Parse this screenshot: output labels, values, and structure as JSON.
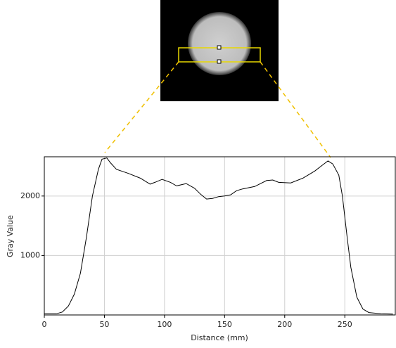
{
  "chart_data": {
    "type": "line",
    "xlabel": "Distance (mm)",
    "ylabel": "Gray Value",
    "x": [
      0,
      10,
      15,
      20,
      25,
      30,
      35,
      40,
      45,
      48,
      52,
      55,
      60,
      70,
      80,
      88,
      92,
      98,
      105,
      110,
      118,
      125,
      130,
      135,
      140,
      145,
      150,
      155,
      160,
      165,
      175,
      185,
      190,
      195,
      205,
      215,
      225,
      232,
      236,
      240,
      245,
      248,
      252,
      255,
      260,
      265,
      270,
      280,
      290
    ],
    "values": [
      20,
      20,
      50,
      150,
      350,
      700,
      1300,
      2000,
      2450,
      2620,
      2640,
      2560,
      2450,
      2380,
      2300,
      2200,
      2230,
      2280,
      2230,
      2170,
      2210,
      2130,
      2030,
      1950,
      1960,
      1990,
      2000,
      2020,
      2090,
      2120,
      2160,
      2260,
      2270,
      2230,
      2220,
      2300,
      2420,
      2530,
      2590,
      2540,
      2350,
      2000,
      1300,
      800,
      300,
      100,
      40,
      20,
      15
    ],
    "color": "#000000",
    "xlim": [
      0,
      292
    ],
    "ylim": [
      0,
      2660
    ],
    "xticks": [
      0,
      50,
      100,
      150,
      200,
      250
    ],
    "yticks": [
      1000,
      2000
    ],
    "grid": true
  }
}
